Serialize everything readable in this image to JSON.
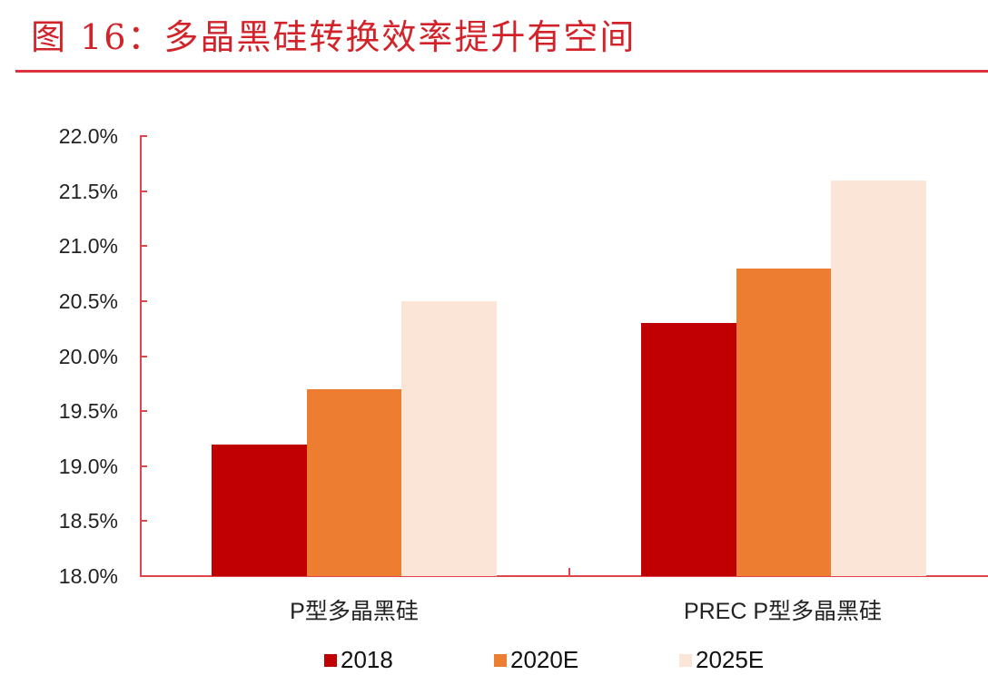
{
  "figure": {
    "title": "图 16：多晶黑硅转换效率提升有空间",
    "title_color": "#d2232a",
    "rule_color": "#d9333d"
  },
  "axis": {
    "color": "#e0454c",
    "y_ticks": [
      "22.0%",
      "21.5%",
      "21.0%",
      "20.5%",
      "20.0%",
      "19.5%",
      "19.0%",
      "18.5%",
      "18.0%"
    ]
  },
  "legend": {
    "items": [
      {
        "label": "2018",
        "color": "#c00000"
      },
      {
        "label": "2020E",
        "color": "#ed7d31"
      },
      {
        "label": "2025E",
        "color": "#fbe5d6"
      }
    ]
  },
  "chart_data": {
    "type": "bar",
    "title": "图 16：多晶黑硅转换效率提升有空间",
    "xlabel": "",
    "ylabel": "",
    "categories": [
      "P型多晶黑硅",
      "PREC P型多晶黑硅"
    ],
    "series": [
      {
        "name": "2018",
        "color": "#c00000",
        "values": [
          19.2,
          20.3
        ]
      },
      {
        "name": "2020E",
        "color": "#ed7d31",
        "values": [
          19.7,
          20.8
        ]
      },
      {
        "name": "2025E",
        "color": "#fbe5d6",
        "values": [
          20.5,
          21.6
        ]
      }
    ],
    "ylim": [
      18.0,
      22.0
    ],
    "y_tick_step": 0.5,
    "y_format": "percent_1dp",
    "grid": false,
    "legend_position": "bottom"
  }
}
